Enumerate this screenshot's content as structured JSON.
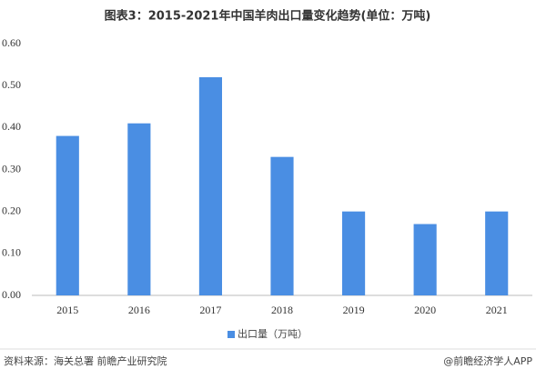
{
  "chart_data": {
    "type": "bar",
    "title": "图表3：2015-2021年中国羊肉出口量变化趋势(单位：万吨)",
    "categories": [
      "2015",
      "2016",
      "2017",
      "2018",
      "2019",
      "2020",
      "2021"
    ],
    "series": [
      {
        "name": "出口量（万吨）",
        "color": "#4a8ee3",
        "values": [
          0.38,
          0.41,
          0.52,
          0.33,
          0.2,
          0.17,
          0.2
        ]
      }
    ],
    "ylim": [
      0,
      0.6
    ],
    "yticks": [
      {
        "value": 0,
        "label": "0.00"
      },
      {
        "value": 0.1,
        "label": "0.10"
      },
      {
        "value": 0.2,
        "label": "0.20"
      },
      {
        "value": 0.3,
        "label": "0.30"
      },
      {
        "value": 0.4,
        "label": "0.40"
      },
      {
        "value": 0.5,
        "label": "0.50"
      },
      {
        "value": 0.6,
        "label": "0.60"
      }
    ],
    "grid": false,
    "source": "资料来源：海关总署 前瞻产业研究院",
    "footer": "@前瞻经济学人APP"
  }
}
